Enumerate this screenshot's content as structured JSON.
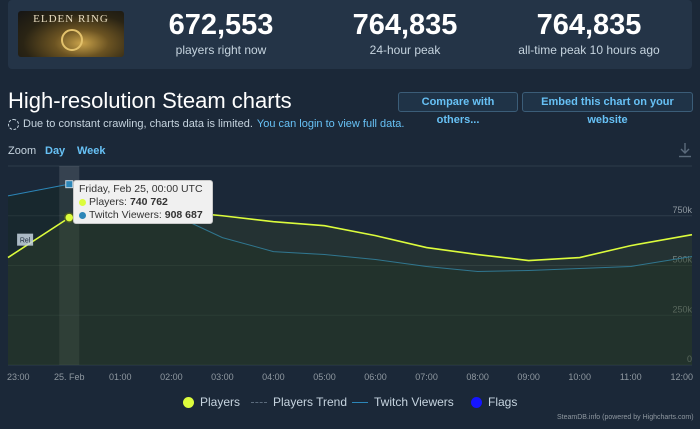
{
  "header": {
    "game_logo_text": "ELDEN RING",
    "stats": [
      {
        "value": "672,553",
        "label": "players right now"
      },
      {
        "value": "764,835",
        "label": "24-hour peak"
      },
      {
        "value": "764,835",
        "label": "all-time peak 10 hours ago"
      }
    ]
  },
  "page": {
    "title": "High-resolution Steam charts",
    "compare_button": "Compare with others...",
    "embed_button": "Embed this chart on your website",
    "notice_text": "Due to constant crawling, charts data is limited.",
    "notice_link": "You can login to view full data."
  },
  "zoom": {
    "label": "Zoom",
    "options": [
      "Day",
      "Week"
    ]
  },
  "tooltip": {
    "date": "Friday, Feb 25, 00:00 UTC",
    "players_label": "Players:",
    "players_value": "740 762",
    "twitch_label": "Twitch Viewers:",
    "twitch_value": "908 687"
  },
  "flag_label": "Rel",
  "legend": {
    "players": "Players",
    "trend": "Players Trend",
    "twitch": "Twitch Viewers",
    "flags": "Flags"
  },
  "credit": "SteamDB.info (powered by Highcharts.com)",
  "chart_data": {
    "type": "line",
    "x_tick_labels": [
      "23:00",
      "25. Feb",
      "01:00",
      "02:00",
      "03:00",
      "04:00",
      "05:00",
      "06:00",
      "07:00",
      "08:00",
      "09:00",
      "10:00",
      "11:00",
      "12:00"
    ],
    "y_tick_labels": [
      "0",
      "250k",
      "500k",
      "750k"
    ],
    "ylim": [
      0,
      1000000
    ],
    "x_hours_range": [
      -1.2,
      12.2
    ],
    "colors": {
      "players": "#dcfc3c",
      "twitch": "#2c86b8",
      "trend": "#5b6b7c",
      "flags": "#1515ff",
      "grid": "#2e3c4a"
    },
    "series": [
      {
        "name": "Players",
        "x": [
          -1.2,
          0,
          1,
          2,
          3,
          4,
          5,
          6,
          7,
          8,
          9,
          10,
          11,
          12.2
        ],
        "y": [
          540000,
          740762,
          770000,
          775000,
          750000,
          720000,
          700000,
          650000,
          590000,
          555000,
          525000,
          540000,
          600000,
          655000
        ]
      },
      {
        "name": "Twitch Viewers",
        "x": [
          -1.2,
          0,
          1,
          2,
          3,
          4,
          5,
          6,
          7,
          8,
          9,
          10,
          11,
          12.2
        ],
        "y": [
          850000,
          908687,
          880000,
          760000,
          640000,
          570000,
          555000,
          530000,
          495000,
          470000,
          475000,
          485000,
          495000,
          545000
        ]
      }
    ],
    "highlighted_x": 0
  }
}
